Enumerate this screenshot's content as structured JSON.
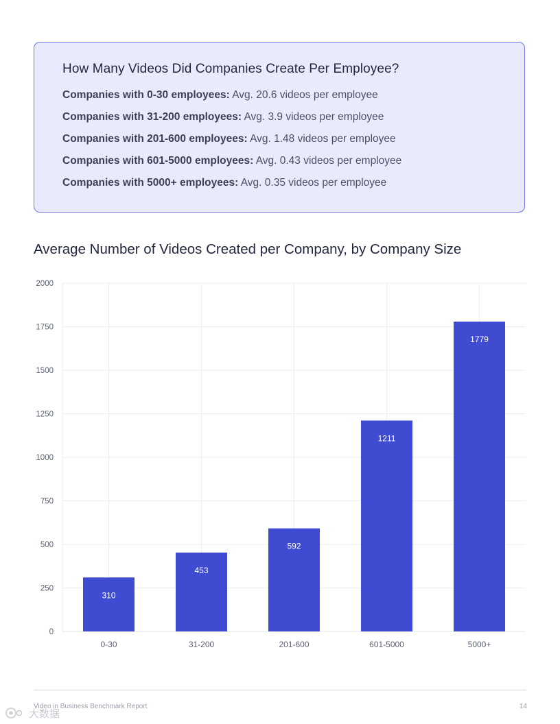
{
  "callout": {
    "title": "How Many Videos Did Companies Create Per Employee?",
    "rows": [
      {
        "label": "Companies with 0-30 employees:",
        "value": "Avg. 20.6 videos per employee"
      },
      {
        "label": "Companies with 31-200 employees:",
        "value": "Avg. 3.9 videos per employee"
      },
      {
        "label": "Companies with 201-600 employees:",
        "value": "Avg. 1.48 videos per employee"
      },
      {
        "label": "Companies with 601-5000 employees:",
        "value": "Avg. 0.43 videos per employee"
      },
      {
        "label": "Companies with 5000+ employees:",
        "value": "Avg. 0.35 videos per employee"
      }
    ]
  },
  "chart_data": {
    "type": "bar",
    "title": "Average Number of Videos Created per Company, by Company Size",
    "categories": [
      "0-30",
      "31-200",
      "201-600",
      "601-5000",
      "5000+"
    ],
    "values": [
      310,
      453,
      592,
      1211,
      1779
    ],
    "value_labels": [
      "310",
      "453",
      "592",
      "1211",
      "1779"
    ],
    "ylim": [
      0,
      2000
    ],
    "yticks": [
      0,
      250,
      500,
      750,
      1000,
      1250,
      1500,
      1750,
      2000
    ],
    "xlabel": "",
    "ylabel": "",
    "grid": true,
    "bar_color": "#3f4cd1",
    "label_color": "#ffffff"
  },
  "footer": {
    "report_name": "Video in Business Benchmark Report",
    "page_number": "14"
  },
  "watermark": {
    "text": "大数据"
  },
  "colors": {
    "callout_bg": "#e9ebfd",
    "callout_border": "#6f76df",
    "grid": "#eceef3",
    "axis_text": "#5b5f70"
  }
}
